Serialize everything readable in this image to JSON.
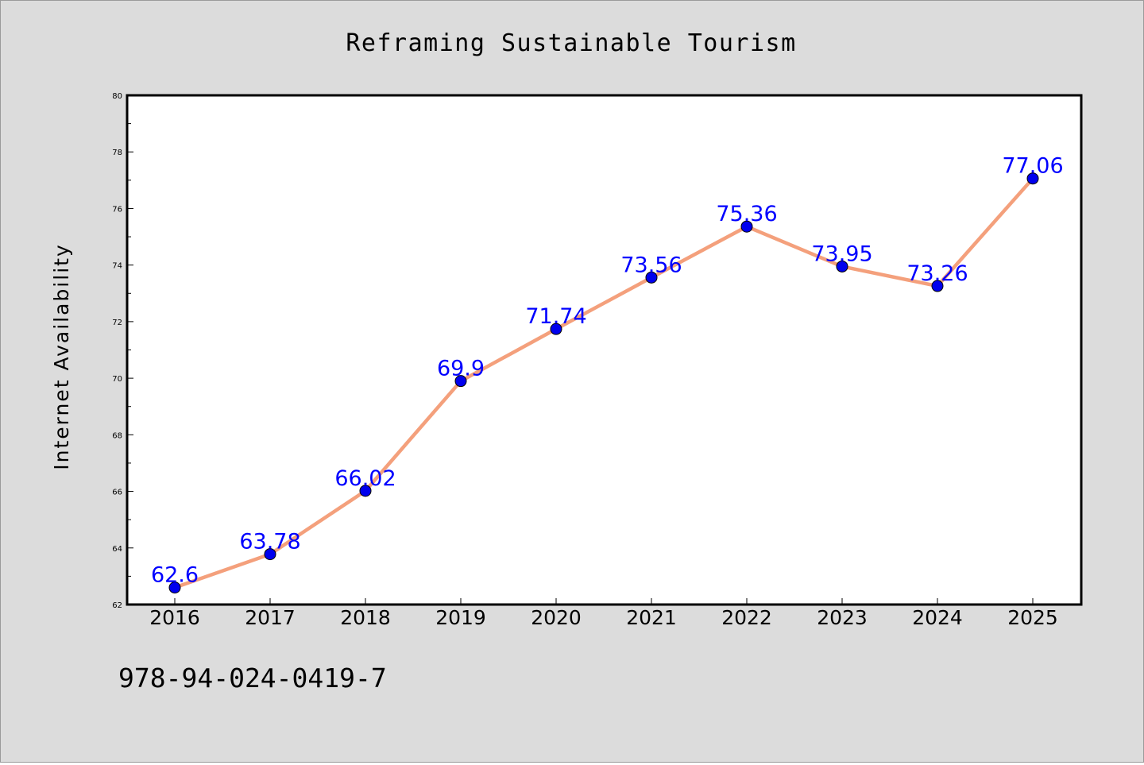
{
  "figure": {
    "background": "#dcdcdc",
    "plot_background": "#ffffff",
    "footer_text": "978-94-024-0419-7"
  },
  "chart_data": {
    "type": "line",
    "title": "Reframing Sustainable Tourism",
    "xlabel": "",
    "ylabel": "Internet Availability",
    "categories": [
      "2016",
      "2017",
      "2018",
      "2019",
      "2020",
      "2021",
      "2022",
      "2023",
      "2024",
      "2025"
    ],
    "series": [
      {
        "values": [
          62.6,
          63.78,
          66.02,
          69.9,
          71.74,
          73.56,
          75.36,
          73.95,
          73.26,
          77.06
        ],
        "labels": [
          "62.6",
          "63.78",
          "66.02",
          "69.9",
          "71.74",
          "73.56",
          "75.36",
          "73.95",
          "73.26",
          "77.06"
        ],
        "line_color": "#f4a07c",
        "marker_color": "#0000ee",
        "label_color": "#0000ff"
      }
    ],
    "ylim": [
      62,
      80
    ],
    "yticks": [
      62,
      64,
      66,
      68,
      70,
      72,
      74,
      76,
      78,
      80
    ],
    "ytick_labels": [
      "62",
      "64",
      "66",
      "68",
      "70",
      "72",
      "74",
      "76",
      "78",
      "80"
    ],
    "grid": false,
    "legend": "none"
  }
}
